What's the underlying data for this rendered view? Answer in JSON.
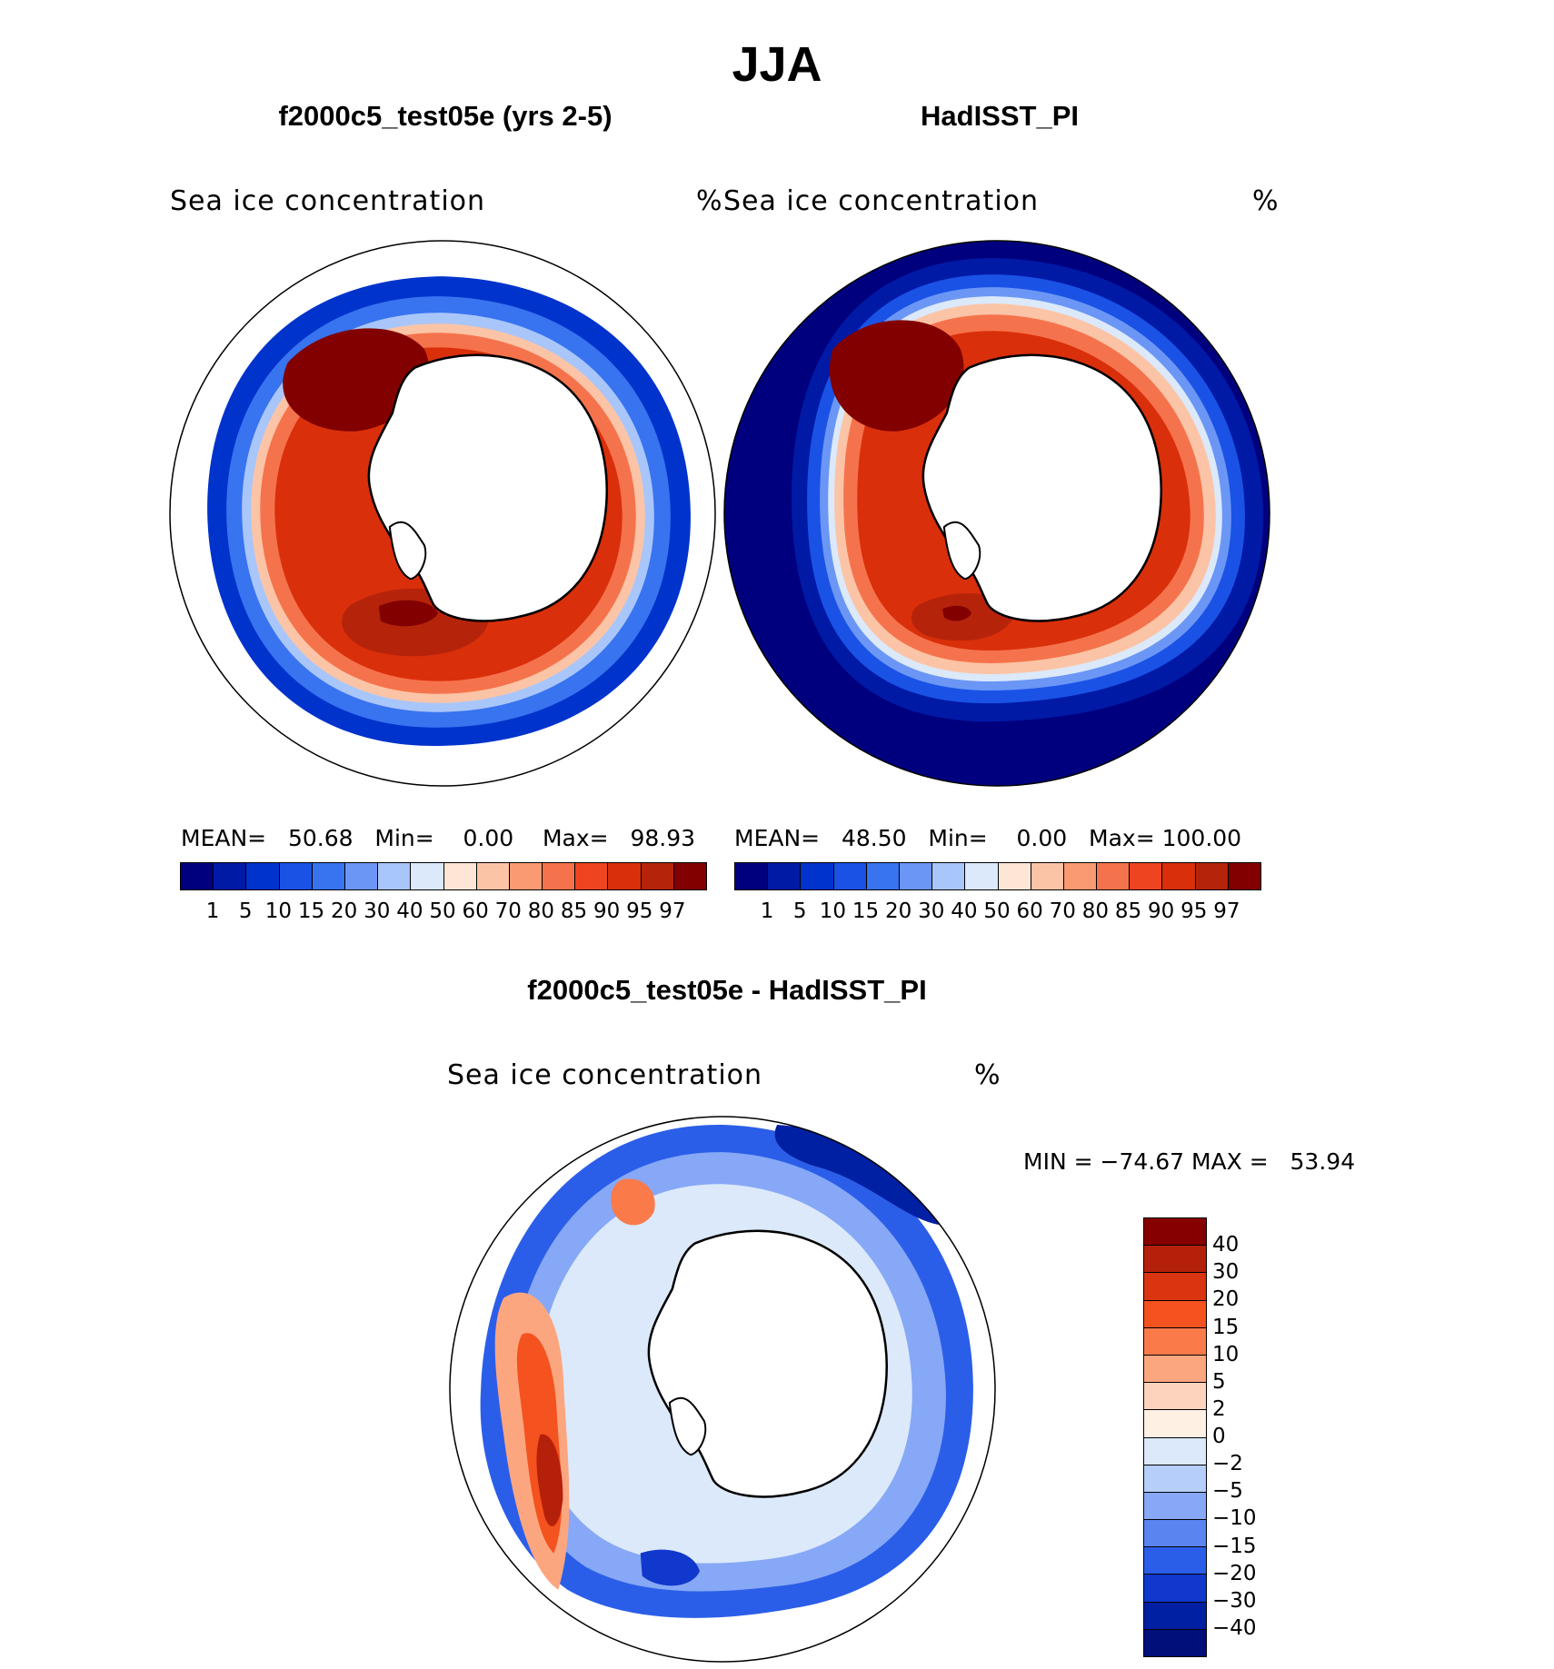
{
  "figure": {
    "season": "JJA",
    "panel_left_title": "f2000c5_test05e (yrs 2-5)",
    "panel_right_title": "HadISST_PI",
    "panel_diff_title": "f2000c5_test05e - HadISST_PI",
    "variable_label": "Sea ice concentration",
    "units": "%"
  },
  "left_stats": {
    "mean_label": "MEAN=",
    "mean_value": "50.68",
    "min_label": "Min=",
    "min_value": "0.00",
    "max_label": "Max=",
    "max_value": "98.93"
  },
  "right_stats": {
    "mean_label": "MEAN=",
    "mean_value": "48.50",
    "min_label": "Min=",
    "min_value": "0.00",
    "max_label": "Max=",
    "max_value": "100.00"
  },
  "diff_stats": {
    "min_label": "MIN =",
    "min_value": "−74.67",
    "max_label": "MAX =",
    "max_value": "53.94"
  },
  "colorbar_abs": {
    "levels": [
      "1",
      "5",
      "10",
      "15",
      "20",
      "30",
      "40",
      "50",
      "60",
      "70",
      "80",
      "85",
      "90",
      "95",
      "97"
    ],
    "colors": [
      "#00007f",
      "#001aa6",
      "#0033cc",
      "#1a52e6",
      "#3873f0",
      "#6b96f5",
      "#a9c6fa",
      "#dbe9fb",
      "#fde6d6",
      "#fcc4a6",
      "#fa9a72",
      "#f5734c",
      "#ee4420",
      "#da2f0b",
      "#b5240a",
      "#820000"
    ]
  },
  "colorbar_diff": {
    "levels": [
      "40",
      "30",
      "20",
      "15",
      "10",
      "5",
      "2",
      "0",
      "−2",
      "−5",
      "−10",
      "−15",
      "−20",
      "−30",
      "−40"
    ],
    "colors": [
      "#870000",
      "#b5200a",
      "#da3410",
      "#f4521e",
      "#fa7a4a",
      "#fca680",
      "#fdd3bd",
      "#fff0e4",
      "#dbe9fb",
      "#b6cefa",
      "#86a8f6",
      "#5a85f0",
      "#2b5ee8",
      "#1038cc",
      "#0020a3",
      "#000f7a"
    ]
  }
}
